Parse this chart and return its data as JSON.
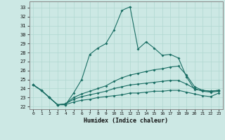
{
  "xlabel": "Humidex (Indice chaleur)",
  "background_color": "#cce8e4",
  "grid_color": "#b0d8d0",
  "line_color": "#1a6e64",
  "xlim": [
    -0.5,
    23.5
  ],
  "ylim": [
    21.7,
    33.7
  ],
  "xticks": [
    0,
    1,
    2,
    3,
    4,
    5,
    6,
    7,
    8,
    9,
    10,
    11,
    12,
    13,
    14,
    15,
    16,
    17,
    18,
    19,
    20,
    21,
    22,
    23
  ],
  "yticks": [
    22,
    23,
    24,
    25,
    26,
    27,
    28,
    29,
    30,
    31,
    32,
    33
  ],
  "series": [
    [
      24.4,
      23.8,
      23.0,
      22.2,
      22.2,
      23.5,
      25.0,
      27.8,
      28.5,
      29.0,
      30.5,
      32.7,
      33.1,
      28.4,
      29.2,
      28.5,
      27.7,
      27.8,
      27.4,
      25.3,
      23.9,
      23.8,
      23.7,
      23.8
    ],
    [
      24.4,
      23.8,
      23.0,
      22.2,
      22.3,
      23.0,
      23.4,
      23.7,
      24.0,
      24.3,
      24.8,
      25.2,
      25.5,
      25.7,
      25.9,
      26.1,
      26.2,
      26.4,
      26.5,
      25.5,
      24.2,
      23.8,
      23.7,
      23.8
    ],
    [
      24.4,
      23.8,
      23.0,
      22.2,
      22.3,
      22.8,
      23.1,
      23.3,
      23.5,
      23.7,
      24.0,
      24.2,
      24.4,
      24.5,
      24.6,
      24.7,
      24.8,
      24.9,
      24.9,
      24.5,
      24.0,
      23.7,
      23.6,
      23.7
    ],
    [
      24.4,
      23.8,
      23.0,
      22.2,
      22.2,
      22.5,
      22.7,
      22.8,
      23.0,
      23.1,
      23.2,
      23.3,
      23.5,
      23.5,
      23.6,
      23.7,
      23.7,
      23.8,
      23.8,
      23.6,
      23.4,
      23.2,
      23.1,
      23.5
    ]
  ]
}
